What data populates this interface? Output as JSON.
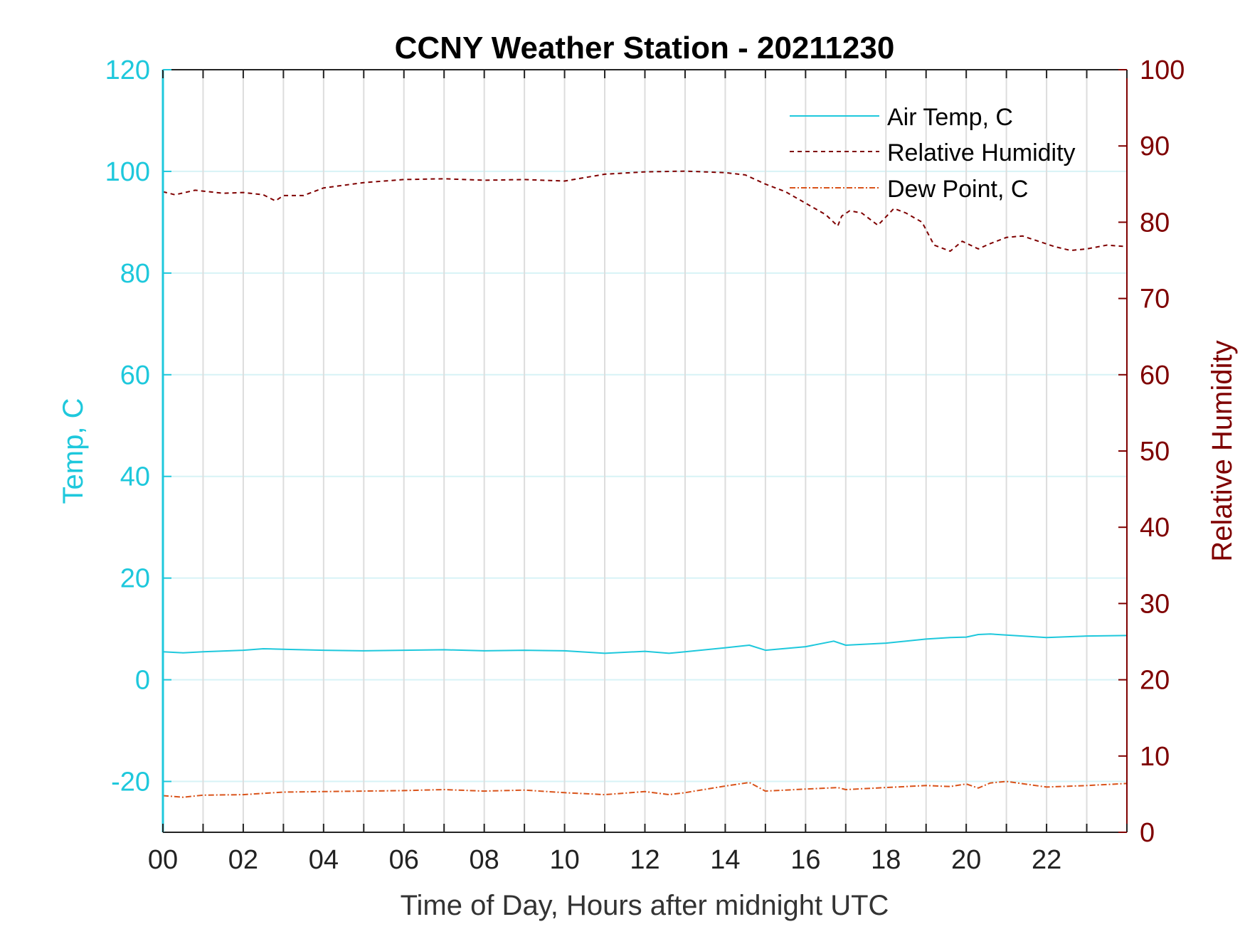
{
  "chart_data": {
    "type": "line",
    "title": "CCNY Weather Station - 20211230",
    "xlabel": "Time of Day, Hours after midnight UTC",
    "ylabel_left": "Temp, C",
    "ylabel_right": "Relative Humidity",
    "xlim": [
      0,
      24
    ],
    "ylim_left": [
      -30,
      120
    ],
    "ylim_right": [
      0,
      100
    ],
    "x_ticks": [
      0,
      2,
      4,
      6,
      8,
      10,
      12,
      14,
      16,
      18,
      20,
      22
    ],
    "x_tick_labels": [
      "00",
      "02",
      "04",
      "06",
      "08",
      "10",
      "12",
      "14",
      "16",
      "18",
      "20",
      "22"
    ],
    "y_left_ticks": [
      -20,
      0,
      20,
      40,
      60,
      80,
      100,
      120
    ],
    "y_left_tick_labels": [
      "-20",
      "0",
      "20",
      "40",
      "60",
      "80",
      "100",
      "120"
    ],
    "y_right_ticks": [
      0,
      10,
      20,
      30,
      40,
      50,
      60,
      70,
      80,
      90,
      100
    ],
    "y_right_tick_labels": [
      "0",
      "10",
      "20",
      "30",
      "40",
      "50",
      "60",
      "70",
      "80",
      "90",
      "100"
    ],
    "grid": true,
    "legend_position": "top-right",
    "colors": {
      "left_axis": "#1ec8dc",
      "right_axis": "#7f0000",
      "air_temp": "#1ec8dc",
      "relative_humidity": "#7f0000",
      "dew_point": "#d9531a",
      "vgrid": "#dddddd",
      "hgrid": "#d7f3f6"
    },
    "series": [
      {
        "name": "Air Temp, C",
        "axis": "left",
        "style": "solid",
        "x": [
          0,
          0.5,
          1,
          2,
          2.5,
          3,
          4,
          5,
          6,
          7,
          8,
          9,
          10,
          11,
          12,
          12.6,
          13,
          14,
          14.6,
          15,
          16,
          16.7,
          17,
          18,
          19,
          19.6,
          20,
          20.3,
          20.6,
          21,
          22,
          23,
          24
        ],
        "values": [
          5.5,
          5.3,
          5.5,
          5.8,
          6.1,
          6.0,
          5.8,
          5.7,
          5.8,
          5.9,
          5.7,
          5.8,
          5.7,
          5.2,
          5.6,
          5.2,
          5.5,
          6.3,
          6.8,
          5.8,
          6.5,
          7.6,
          6.8,
          7.2,
          8.0,
          8.3,
          8.4,
          8.9,
          9.0,
          8.8,
          8.3,
          8.6,
          8.7
        ]
      },
      {
        "name": "Relative Humidity",
        "axis": "right",
        "style": "dashed",
        "x": [
          0,
          0.3,
          0.8,
          1.5,
          2,
          2.5,
          2.8,
          3,
          3.5,
          4,
          5,
          6,
          7,
          8,
          9,
          10,
          11,
          12,
          13,
          14,
          14.5,
          15,
          15.5,
          16,
          16.5,
          16.8,
          16.9,
          17.1,
          17.4,
          17.8,
          18.2,
          18.5,
          18.9,
          19.2,
          19.6,
          19.9,
          20.3,
          20.6,
          21,
          21.4,
          21.8,
          22.2,
          22.6,
          23,
          23.5,
          24
        ],
        "values": [
          84,
          83.6,
          84.2,
          83.8,
          83.9,
          83.6,
          82.8,
          83.5,
          83.5,
          84.5,
          85.2,
          85.6,
          85.7,
          85.5,
          85.6,
          85.4,
          86.3,
          86.6,
          86.7,
          86.5,
          86.2,
          85.0,
          84.0,
          82.5,
          81.0,
          79.5,
          80.8,
          81.5,
          81.2,
          79.6,
          81.8,
          81.2,
          80.0,
          77.0,
          76.2,
          77.5,
          76.5,
          77.2,
          78.0,
          78.2,
          77.5,
          76.8,
          76.3,
          76.5,
          77.0,
          76.8
        ]
      },
      {
        "name": "Dew Point, C",
        "axis": "left",
        "style": "dashdot",
        "x": [
          0,
          0.5,
          1,
          2,
          3,
          4,
          5,
          6,
          7,
          8,
          9,
          10,
          11,
          12,
          12.6,
          13,
          14,
          14.6,
          15,
          16,
          16.8,
          17,
          18,
          19,
          19.6,
          20,
          20.3,
          20.6,
          21,
          22,
          23,
          24
        ],
        "values": [
          -22.8,
          -23.1,
          -22.7,
          -22.6,
          -22.1,
          -22.0,
          -21.9,
          -21.8,
          -21.6,
          -21.9,
          -21.7,
          -22.2,
          -22.6,
          -22.0,
          -22.6,
          -22.2,
          -20.9,
          -20.2,
          -21.9,
          -21.5,
          -21.2,
          -21.6,
          -21.2,
          -20.8,
          -21.0,
          -20.5,
          -21.3,
          -20.3,
          -20.0,
          -21.1,
          -20.8,
          -20.4
        ]
      }
    ]
  }
}
